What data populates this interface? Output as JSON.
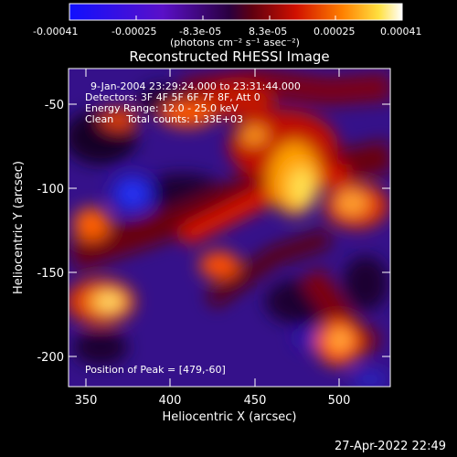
{
  "colorbar": {
    "ticks": [
      "-0.00041",
      "-0.00025",
      "-8.3e-05",
      "8.3e-05",
      "0.00025",
      "0.00041"
    ],
    "unit_label": "(photons cm⁻² s⁻¹ asec⁻²)",
    "range": [
      -0.00041,
      0.00041
    ]
  },
  "plot": {
    "title": "Reconstructed RHESSI Image",
    "info_lines": [
      "9-Jan-2004 23:29:24.000 to 23:31:44.000",
      "Detectors: 3F 4F 5F 6F 7F 8F, Att 0",
      "Energy Range: 12.0 - 25.0 keV",
      "Clean    Total counts: 1.33E+03"
    ],
    "peak_label": "Position of Peak = [479,-60]",
    "xlabel": "Heliocentric X (arcsec)",
    "ylabel": "Heliocentric Y (arcsec)",
    "xticks": [
      "350",
      "400",
      "450",
      "500"
    ],
    "yticks": [
      "-50",
      "-100",
      "-150",
      "-200"
    ],
    "xlim": [
      340,
      530
    ],
    "ylim": [
      -223,
      -33
    ]
  },
  "timestamp": "27-Apr-2022 22:49"
}
